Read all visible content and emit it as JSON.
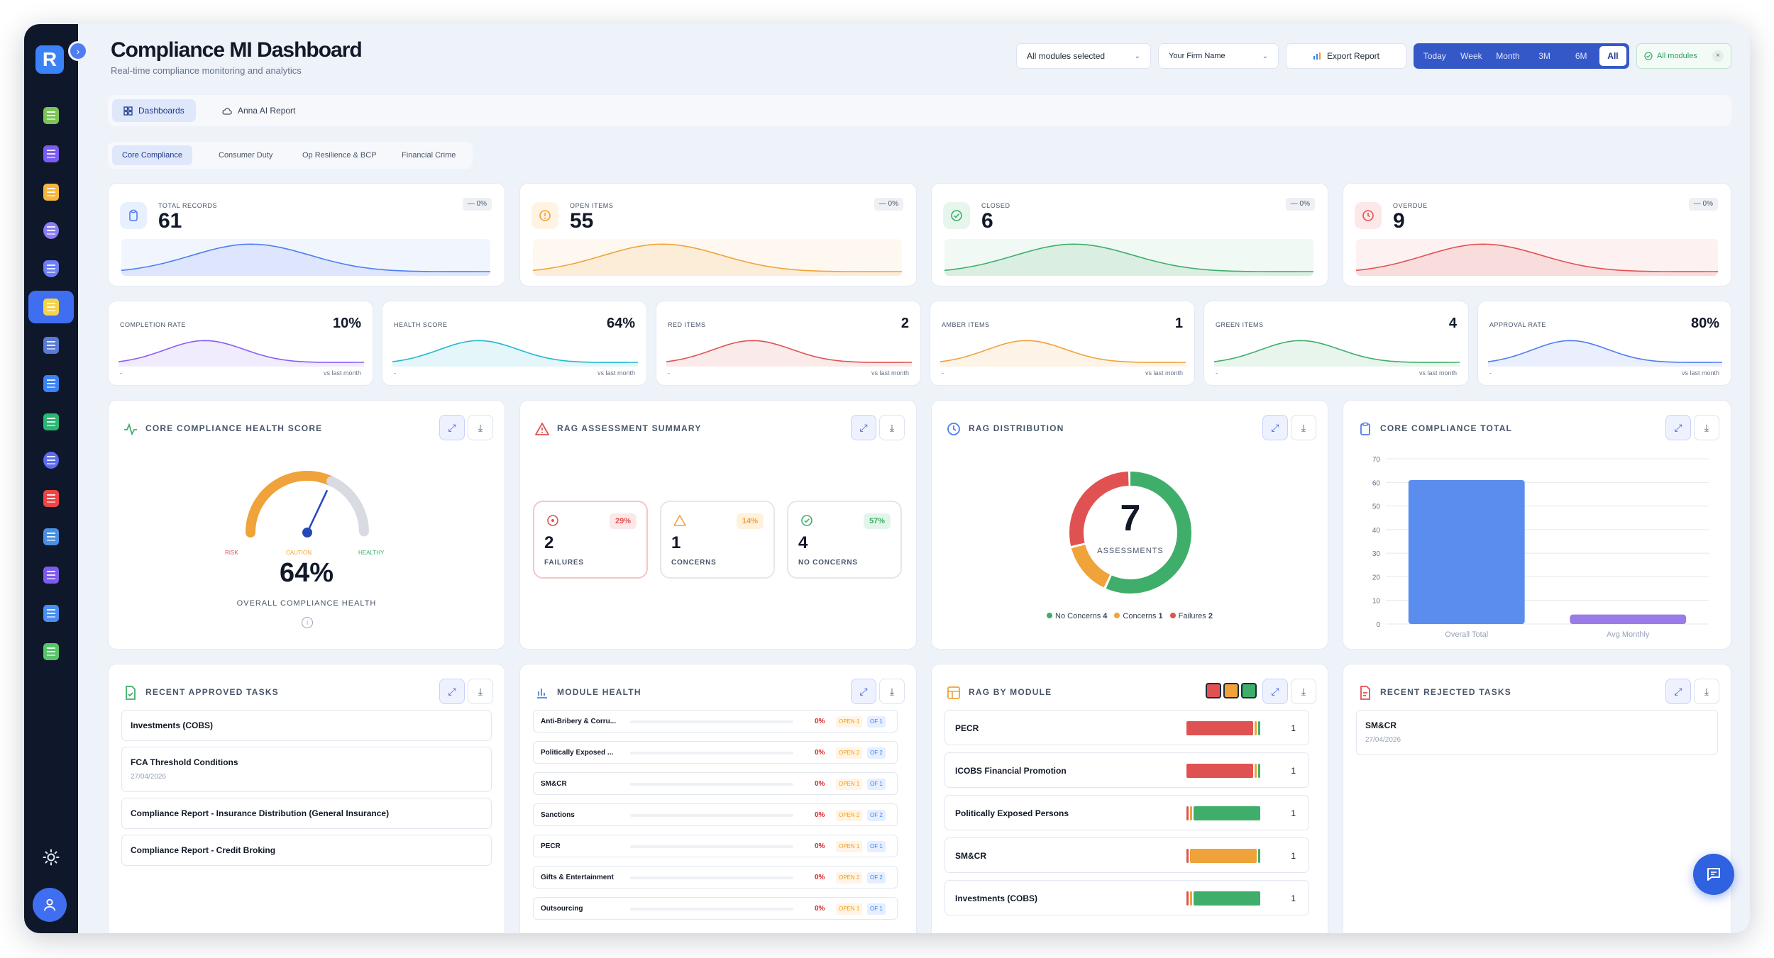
{
  "app": {
    "logo_letter": "R"
  },
  "header": {
    "title": "Compliance MI Dashboard",
    "subtitle": "Real-time compliance monitoring and analytics",
    "modules_select": "All modules selected",
    "firm_select": "Your Firm Name",
    "export_label": "Export Report",
    "periods": [
      "Today",
      "Week",
      "Month",
      "3M",
      "6M",
      "All"
    ],
    "selected_period": "All",
    "filter_chip": "All modules"
  },
  "nav": {
    "tabs": [
      "Dashboards",
      "Anna AI Report"
    ],
    "selected": "Dashboards"
  },
  "subtabs": {
    "items": [
      "Core Compliance",
      "Consumer Duty",
      "Op Resilience & BCP",
      "Financial Crime"
    ],
    "selected": "Core Compliance"
  },
  "kpis": [
    {
      "label": "TOTAL RECORDS",
      "value": "61",
      "delta": "— 0%",
      "color": "#4f7df0"
    },
    {
      "label": "OPEN ITEMS",
      "value": "55",
      "delta": "— 0%",
      "color": "#f0a23b"
    },
    {
      "label": "CLOSED",
      "value": "6",
      "delta": "— 0%",
      "color": "#3fae6a"
    },
    {
      "label": "OVERDUE",
      "value": "9",
      "delta": "— 0%",
      "color": "#e05252"
    }
  ],
  "metrics": [
    {
      "label": "COMPLETION RATE",
      "value": "10%",
      "dash": "-",
      "vs": "vs last month",
      "color": "#8b5cf6"
    },
    {
      "label": "HEALTH SCORE",
      "value": "64%",
      "dash": "-",
      "vs": "vs last month",
      "color": "#22b8cf"
    },
    {
      "label": "RED ITEMS",
      "value": "2",
      "dash": "-",
      "vs": "vs last month",
      "color": "#e05252"
    },
    {
      "label": "AMBER ITEMS",
      "value": "1",
      "dash": "-",
      "vs": "vs last month",
      "color": "#f0a23b"
    },
    {
      "label": "GREEN ITEMS",
      "value": "4",
      "dash": "-",
      "vs": "vs last month",
      "color": "#3fae6a"
    },
    {
      "label": "APPROVAL RATE",
      "value": "80%",
      "dash": "-",
      "vs": "vs last month",
      "color": "#4f7df0"
    }
  ],
  "health": {
    "title": "CORE COMPLIANCE HEALTH SCORE",
    "value": "64%",
    "score": 64,
    "caption": "OVERALL COMPLIANCE HEALTH",
    "risk": "RISK",
    "caution": "CAUTION",
    "healthy": "HEALTHY"
  },
  "rag_summary": {
    "title": "RAG ASSESSMENT SUMMARY",
    "boxes": [
      {
        "pct": "29%",
        "num": "2",
        "label": "FAILURES",
        "color": "#e05252"
      },
      {
        "pct": "14%",
        "num": "1",
        "label": "CONCERNS",
        "color": "#f0a23b"
      },
      {
        "pct": "57%",
        "num": "4",
        "label": "NO CONCERNS",
        "color": "#3fae6a"
      }
    ]
  },
  "rag_dist": {
    "title": "RAG DISTRIBUTION",
    "total": "7",
    "caption": "ASSESSMENTS",
    "legend": [
      {
        "label": "No Concerns",
        "count": "4",
        "color": "#3fae6a"
      },
      {
        "label": "Concerns",
        "count": "1",
        "color": "#f0a23b"
      },
      {
        "label": "Failures",
        "count": "2",
        "color": "#e05252"
      }
    ]
  },
  "chart_data": {
    "type": "bar",
    "title": "CORE COMPLIANCE TOTAL",
    "categories": [
      "Overall Total",
      "Avg Monthly"
    ],
    "values": [
      61,
      4
    ],
    "colors": [
      "#5b8def",
      "#9b7be8"
    ],
    "yticks": [
      "0",
      "10",
      "20",
      "30",
      "40",
      "50",
      "60",
      "70"
    ],
    "ylim": [
      0,
      70
    ],
    "grid": true
  },
  "approved": {
    "title": "RECENT APPROVED TASKS",
    "items": [
      {
        "name": "Investments (COBS)",
        "date": ""
      },
      {
        "name": "FCA Threshold Conditions",
        "date": "27/04/2026"
      },
      {
        "name": "Compliance Report - Insurance Distribution (General Insurance)",
        "date": ""
      },
      {
        "name": "Compliance Report - Credit Broking",
        "date": ""
      }
    ]
  },
  "module_health": {
    "title": "MODULE HEALTH",
    "rows": [
      {
        "name": "Anti-Bribery & Corru...",
        "pct": "0%",
        "open": "OPEN 1",
        "of": "OF 1"
      },
      {
        "name": "Politically Exposed ...",
        "pct": "0%",
        "open": "OPEN 2",
        "of": "OF 2"
      },
      {
        "name": "SM&CR",
        "pct": "0%",
        "open": "OPEN 1",
        "of": "OF 1"
      },
      {
        "name": "Sanctions",
        "pct": "0%",
        "open": "OPEN 2",
        "of": "OF 2"
      },
      {
        "name": "PECR",
        "pct": "0%",
        "open": "OPEN 1",
        "of": "OF 1"
      },
      {
        "name": "Gifts & Entertainment",
        "pct": "0%",
        "open": "OPEN 2",
        "of": "OF 2"
      },
      {
        "name": "Outsourcing",
        "pct": "0%",
        "open": "OPEN 1",
        "of": "OF 1"
      }
    ]
  },
  "rag_module": {
    "title": "RAG BY MODULE",
    "rows": [
      {
        "name": "PECR",
        "count": "1",
        "status": "red"
      },
      {
        "name": "ICOBS Financial Promotion",
        "count": "1",
        "status": "red"
      },
      {
        "name": "Politically Exposed Persons",
        "count": "1",
        "status": "green"
      },
      {
        "name": "SM&CR",
        "count": "1",
        "status": "amber"
      },
      {
        "name": "Investments (COBS)",
        "count": "1",
        "status": "green"
      }
    ]
  },
  "rejected": {
    "title": "RECENT REJECTED TASKS",
    "items": [
      {
        "name": "SM&CR",
        "date": "27/04/2026"
      }
    ]
  }
}
